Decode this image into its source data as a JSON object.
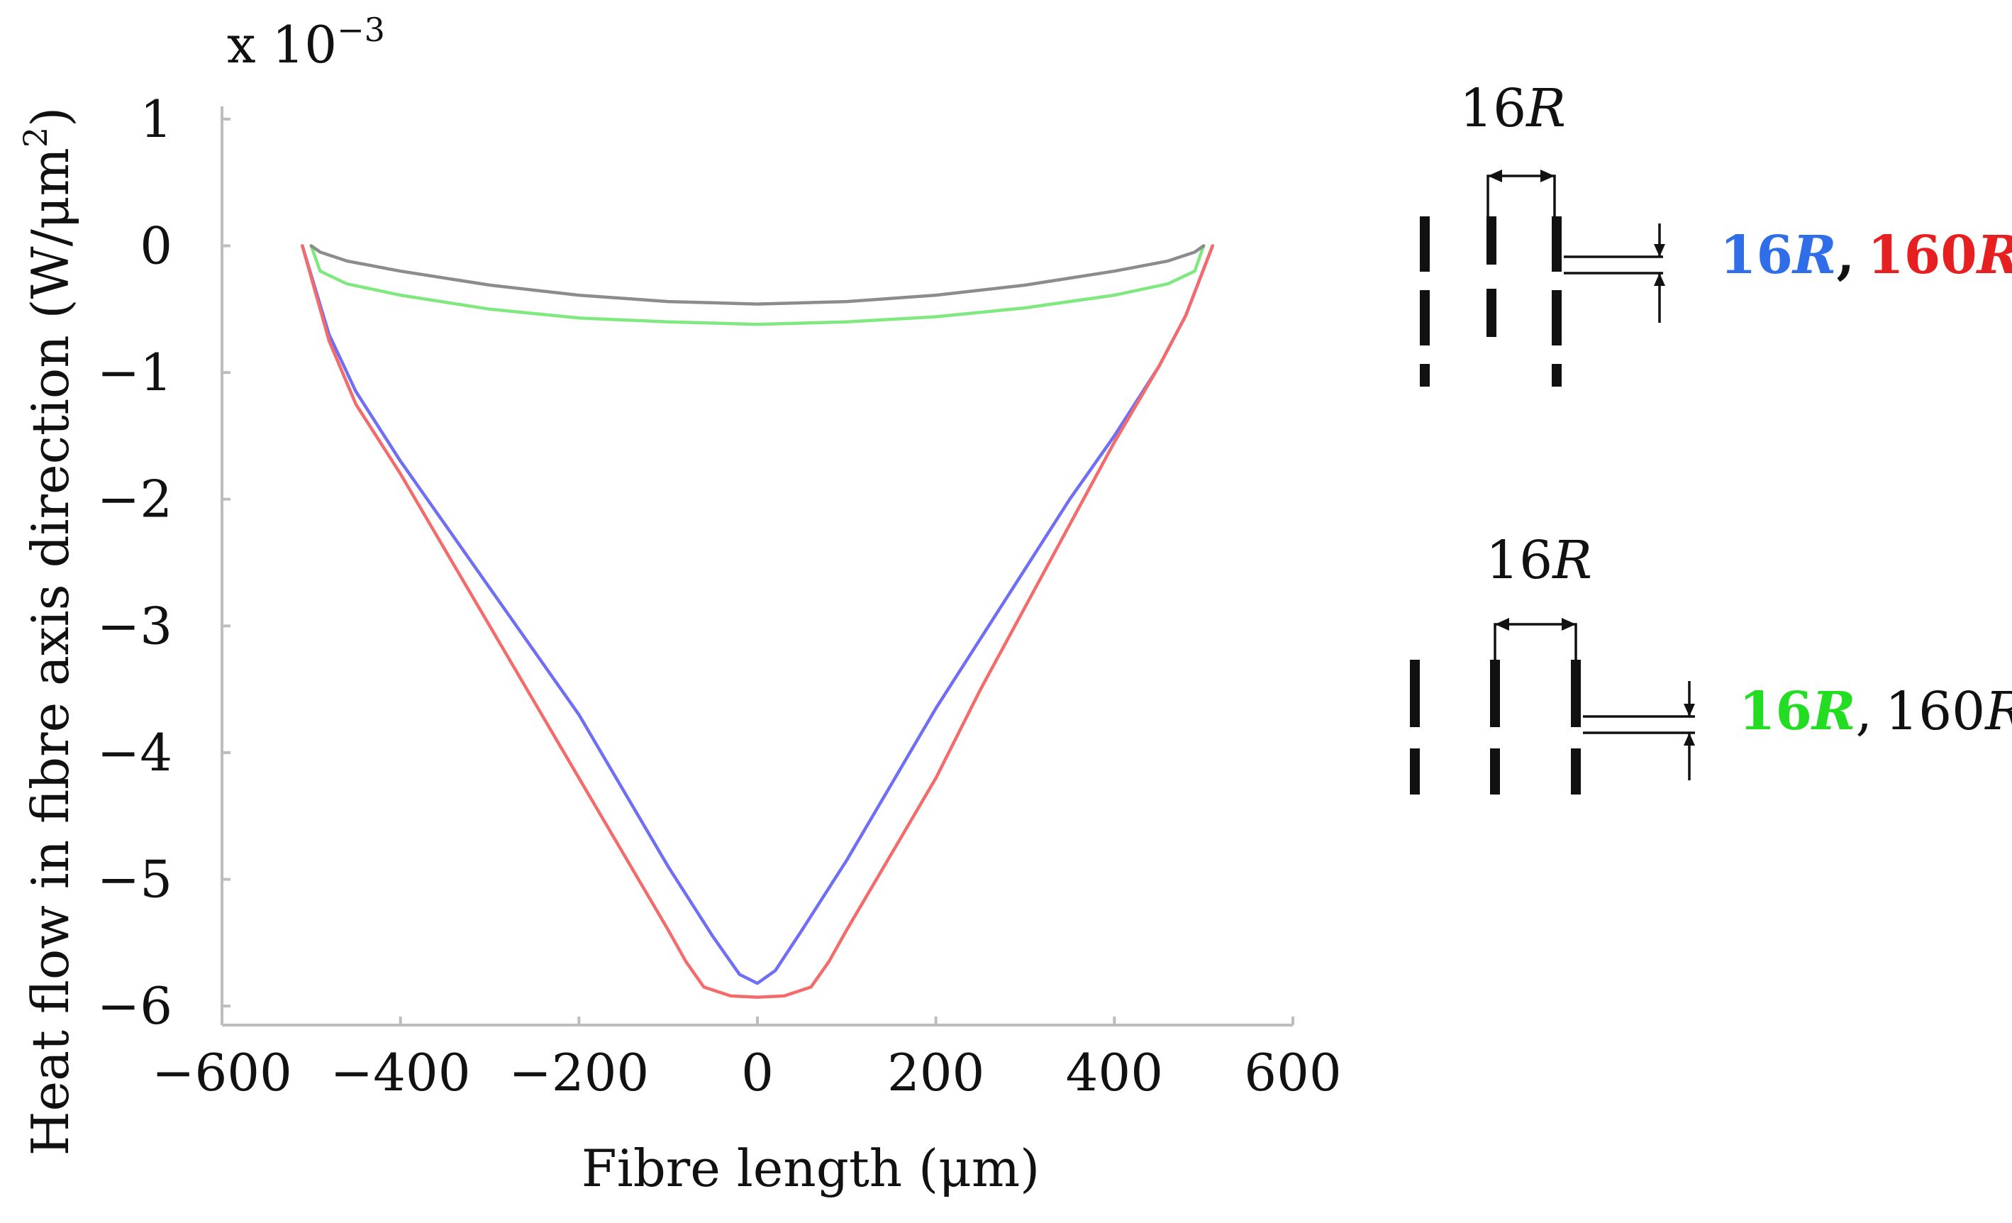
{
  "chart_data": {
    "type": "line",
    "xlabel": "Fibre length (μm)",
    "ylabel_main": "Heat flow in fibre axis direction (W/μm",
    "ylabel_sup": "2",
    "ylabel_close": ")",
    "y_multiplier_base": "x 10",
    "y_multiplier_exp": "−3",
    "xlim": [
      -600,
      600
    ],
    "ylim": [
      -6.15,
      1.1
    ],
    "x_ticks": [
      -600,
      -400,
      -200,
      0,
      200,
      400,
      600
    ],
    "x_tick_labels": [
      "−600",
      "−400",
      "−200",
      "0",
      "200",
      "400",
      "600"
    ],
    "y_ticks": [
      1,
      0,
      -1,
      -2,
      -3,
      -4,
      -5,
      -6
    ],
    "y_tick_labels": [
      "1",
      "0",
      "−1",
      "−2",
      "−3",
      "−4",
      "−5",
      "−6"
    ],
    "grid": false,
    "series": [
      {
        "name": "16R (blue)",
        "color": "#6f6ff5",
        "x": [
          -510,
          -480,
          -450,
          -400,
          -350,
          -300,
          -250,
          -200,
          -150,
          -100,
          -50,
          -20,
          0,
          20,
          50,
          100,
          150,
          200,
          250,
          300,
          350,
          400,
          450,
          480,
          510
        ],
        "y": [
          0.0,
          -0.7,
          -1.15,
          -1.7,
          -2.2,
          -2.7,
          -3.2,
          -3.7,
          -4.3,
          -4.9,
          -5.45,
          -5.75,
          -5.82,
          -5.72,
          -5.4,
          -4.85,
          -4.25,
          -3.65,
          -3.1,
          -2.55,
          -2.0,
          -1.5,
          -0.95,
          -0.55,
          0.0
        ]
      },
      {
        "name": "160R (red)",
        "color": "#f46b6b",
        "x": [
          -510,
          -480,
          -450,
          -400,
          -350,
          -300,
          -250,
          -200,
          -150,
          -100,
          -80,
          -60,
          -30,
          0,
          30,
          60,
          80,
          100,
          150,
          200,
          250,
          300,
          350,
          400,
          450,
          480,
          510
        ],
        "y": [
          0.0,
          -0.75,
          -1.25,
          -1.8,
          -2.4,
          -3.0,
          -3.6,
          -4.2,
          -4.8,
          -5.4,
          -5.65,
          -5.85,
          -5.92,
          -5.93,
          -5.92,
          -5.85,
          -5.65,
          -5.4,
          -4.8,
          -4.2,
          -3.5,
          -2.85,
          -2.2,
          -1.55,
          -0.95,
          -0.55,
          0.0
        ]
      },
      {
        "name": "16R (green)",
        "color": "#7fe87f",
        "x": [
          -500,
          -490,
          -460,
          -400,
          -300,
          -200,
          -100,
          0,
          100,
          200,
          300,
          400,
          460,
          490,
          500
        ],
        "y": [
          0.0,
          -0.2,
          -0.3,
          -0.39,
          -0.5,
          -0.57,
          -0.6,
          -0.62,
          -0.6,
          -0.56,
          -0.49,
          -0.39,
          -0.3,
          -0.2,
          0.0
        ]
      },
      {
        "name": "160R (black)",
        "color": "#8c8c8c",
        "x": [
          -500,
          -490,
          -460,
          -400,
          -300,
          -200,
          -100,
          0,
          100,
          200,
          300,
          400,
          460,
          490,
          500
        ],
        "y": [
          0.0,
          -0.05,
          -0.12,
          -0.2,
          -0.31,
          -0.39,
          -0.44,
          -0.46,
          -0.44,
          -0.39,
          -0.31,
          -0.2,
          -0.12,
          -0.05,
          0.0
        ]
      }
    ]
  },
  "legend": {
    "top": {
      "spacing_label_num": "16",
      "spacing_label_sym": "R",
      "series_a_num": "16",
      "series_a_sym": "R",
      "series_a_color": "#2f6ee8",
      "separator": ",",
      "series_b_num": "160",
      "series_b_sym": "R",
      "series_b_color": "#e62020"
    },
    "bottom": {
      "spacing_label_num": "16",
      "spacing_label_sym": "R",
      "series_a_num": "16",
      "series_a_sym": "R",
      "series_a_color": "#22dd22",
      "separator": ",",
      "series_b_num": "160",
      "series_b_sym": "R",
      "series_b_color": "#111111"
    }
  }
}
